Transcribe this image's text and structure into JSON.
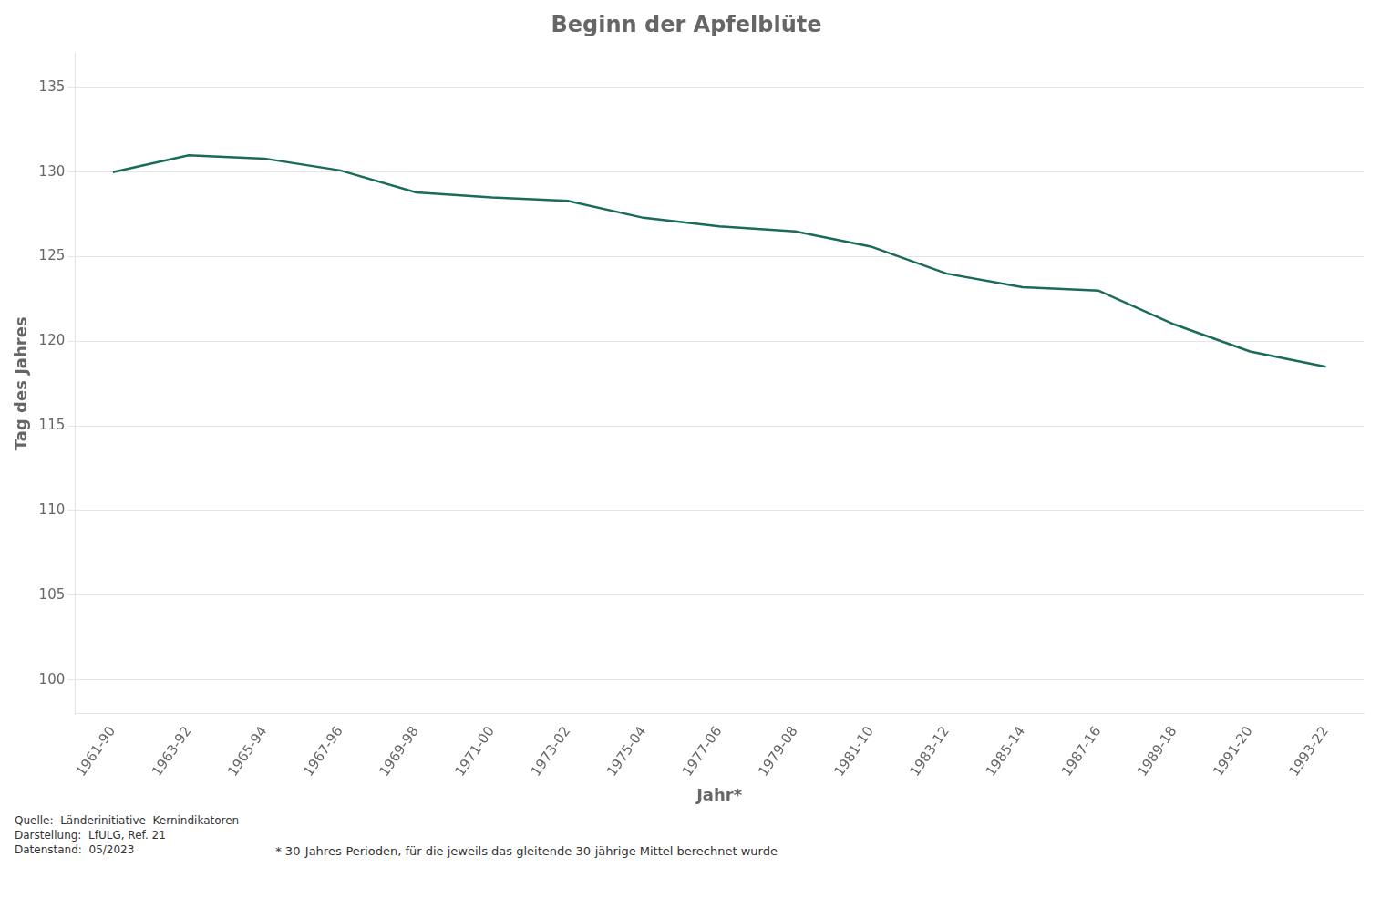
{
  "chart_data": {
    "type": "line",
    "title": "Beginn der Apfelblüte",
    "xlabel": "Jahr*",
    "ylabel": "Tag des Jahres",
    "categories": [
      "1961-90",
      "1963-92",
      "1965-94",
      "1967-96",
      "1969-98",
      "1971-00",
      "1973-02",
      "1975-04",
      "1977-06",
      "1979-08",
      "1981-10",
      "1983-12",
      "1985-14",
      "1987-16",
      "1989-18",
      "1991-20",
      "1993-22"
    ],
    "values": [
      130.0,
      131.0,
      130.8,
      130.1,
      128.8,
      128.5,
      128.3,
      127.3,
      126.8,
      126.5,
      125.6,
      124.0,
      123.2,
      123.0,
      121.0,
      119.4,
      118.5
    ],
    "color": "#1a6b5a",
    "ylim": [
      98,
      137
    ],
    "yticks": [
      100,
      105,
      110,
      115,
      120,
      125,
      130,
      135
    ],
    "grid": true,
    "annotations": [
      "Quelle:  Länderinitiative  Kernindikatoren\nDarstellung:  LfULG, Ref. 21\nDatenstand:  05/2023",
      "* 30-Jahres-Perioden, für die jeweils das gleitende 30-jährige Mittel berechnet wurde"
    ]
  }
}
